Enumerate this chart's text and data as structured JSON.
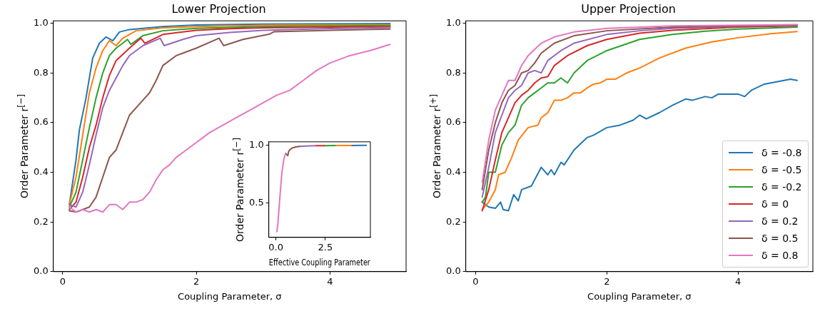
{
  "chart_data": [
    {
      "type": "line",
      "title": "Lower Projection",
      "xlabel": "Coupling Parameter, σ",
      "ylabel": "Order Parameter r$^{[−]}$",
      "xlim": [
        -0.14,
        5.14
      ],
      "ylim": [
        0,
        1.01
      ],
      "xticks": [
        0,
        2,
        4
      ],
      "yticks": [
        {
          "value": 0,
          "label": "0.0"
        },
        {
          "value": 0.2,
          "label": "0.2"
        },
        {
          "value": 0.4,
          "label": "0.4"
        },
        {
          "value": 0.6,
          "label": "0.6"
        },
        {
          "value": 0.8,
          "label": "0.8"
        },
        {
          "value": 1,
          "label": "1.0"
        }
      ],
      "grid": false,
      "legend": false,
      "marker": "none",
      "line_style": "solid",
      "series": [
        {
          "color": "#1f77b4",
          "x": [
            0.1,
            0.2,
            0.25,
            0.35,
            0.45,
            0.55,
            0.65,
            0.75,
            0.85,
            1.0,
            1.5,
            2,
            3,
            4.9
          ],
          "values": [
            0.27,
            0.45,
            0.57,
            0.7,
            0.86,
            0.92,
            0.945,
            0.93,
            0.965,
            0.975,
            0.987,
            0.993,
            0.997,
            0.999
          ]
        },
        {
          "color": "#ff7f0e",
          "x": [
            0.1,
            0.2,
            0.3,
            0.4,
            0.5,
            0.6,
            0.7,
            0.8,
            0.9,
            1.1,
            1.5,
            2,
            3,
            4.9
          ],
          "values": [
            0.27,
            0.38,
            0.55,
            0.72,
            0.82,
            0.89,
            0.93,
            0.91,
            0.94,
            0.97,
            0.982,
            0.987,
            0.992,
            0.995
          ]
        },
        {
          "color": "#2ca02c",
          "x": [
            0.1,
            0.2,
            0.3,
            0.4,
            0.5,
            0.6,
            0.7,
            0.8,
            0.9,
            0.97,
            1.02,
            1.2,
            1.5,
            2,
            3,
            4.9
          ],
          "values": [
            0.26,
            0.32,
            0.45,
            0.58,
            0.7,
            0.8,
            0.87,
            0.9,
            0.92,
            0.935,
            0.915,
            0.95,
            0.97,
            0.98,
            0.987,
            0.991
          ]
        },
        {
          "color": "#d62728",
          "x": [
            0.1,
            0.2,
            0.3,
            0.4,
            0.5,
            0.6,
            0.7,
            0.8,
            1.0,
            1.17,
            1.23,
            1.5,
            2,
            2.5,
            3,
            4,
            4.9
          ],
          "values": [
            0.25,
            0.28,
            0.38,
            0.5,
            0.59,
            0.7,
            0.79,
            0.85,
            0.9,
            0.94,
            0.92,
            0.955,
            0.972,
            0.978,
            0.982,
            0.985,
            0.987
          ]
        },
        {
          "color": "#9467bd",
          "x": [
            0.1,
            0.2,
            0.3,
            0.4,
            0.5,
            0.6,
            0.7,
            0.8,
            0.9,
            1.0,
            1.2,
            1.46,
            1.52,
            1.8,
            2,
            2.5,
            3,
            4,
            4.9
          ],
          "values": [
            0.27,
            0.26,
            0.32,
            0.43,
            0.55,
            0.66,
            0.73,
            0.78,
            0.83,
            0.87,
            0.91,
            0.94,
            0.91,
            0.935,
            0.95,
            0.963,
            0.972,
            0.979,
            0.983
          ]
        },
        {
          "color": "#8c564b",
          "x": [
            0.1,
            0.2,
            0.4,
            0.5,
            0.6,
            0.7,
            0.8,
            0.9,
            1.0,
            1.2,
            1.3,
            1.4,
            1.5,
            1.7,
            2.0,
            2.34,
            2.41,
            2.7,
            3.1,
            3.16,
            3.6,
            4,
            4.9
          ],
          "values": [
            0.245,
            0.24,
            0.26,
            0.3,
            0.38,
            0.46,
            0.49,
            0.56,
            0.63,
            0.69,
            0.72,
            0.77,
            0.83,
            0.87,
            0.9,
            0.94,
            0.91,
            0.935,
            0.957,
            0.966,
            0.969,
            0.972,
            0.977
          ]
        },
        {
          "color": "#e377c2",
          "x": [
            0.1,
            0.2,
            0.3,
            0.4,
            0.5,
            0.6,
            0.7,
            0.8,
            0.9,
            1.0,
            1.1,
            1.2,
            1.3,
            1.4,
            1.5,
            1.6,
            1.7,
            1.8,
            2.0,
            2.2,
            2.4,
            2.6,
            2.8,
            3.0,
            3.2,
            3.4,
            3.6,
            3.8,
            4.0,
            4.3,
            4.6,
            4.9
          ],
          "values": [
            0.26,
            0.24,
            0.25,
            0.24,
            0.25,
            0.24,
            0.27,
            0.27,
            0.25,
            0.28,
            0.28,
            0.29,
            0.32,
            0.37,
            0.41,
            0.43,
            0.46,
            0.48,
            0.52,
            0.56,
            0.59,
            0.62,
            0.65,
            0.68,
            0.71,
            0.73,
            0.77,
            0.81,
            0.84,
            0.87,
            0.89,
            0.915
          ]
        }
      ]
    },
    {
      "type": "line",
      "xlabel": "Effective Coupling Parameter",
      "ylabel": "Order Parameter r$^{[−]}$",
      "xlim": [
        -0.36,
        4.78
      ],
      "ylim": [
        0.2,
        1.03
      ],
      "xticks": [
        {
          "value": 0,
          "label": "0.0"
        },
        2.5
      ],
      "yticks": [
        0.5,
        {
          "value": 1,
          "label": "1.0"
        }
      ],
      "grid": false,
      "legend": false,
      "marker": "none",
      "line_style": "solid",
      "series": [
        {
          "color": "#1f77b4",
          "x": [
            3.8,
            4.57
          ],
          "values": [
            0.998,
            0.999
          ]
        },
        {
          "color": "#ff7f0e",
          "x": [
            3.0,
            3.8
          ],
          "values": [
            0.998,
            0.998
          ]
        },
        {
          "color": "#2ca02c",
          "x": [
            2.45,
            3.0
          ],
          "values": [
            0.997,
            0.998
          ]
        },
        {
          "color": "#d62728",
          "x": [
            2.0,
            2.45
          ],
          "values": [
            0.996,
            0.997
          ]
        },
        {
          "color": "#9467bd",
          "x": [
            1.2,
            1.5,
            2.0
          ],
          "values": [
            0.99,
            0.993,
            0.996
          ]
        },
        {
          "color": "#8c564b",
          "x": [
            0.49,
            0.6,
            0.65,
            0.7,
            0.8,
            1.0,
            1.2
          ],
          "values": [
            0.93,
            0.91,
            0.95,
            0.96,
            0.975,
            0.985,
            0.99
          ]
        },
        {
          "color": "#e377c2",
          "x": [
            0.05,
            0.1,
            0.2,
            0.3,
            0.4,
            0.49
          ],
          "values": [
            0.25,
            0.32,
            0.55,
            0.76,
            0.88,
            0.93
          ]
        }
      ]
    },
    {
      "type": "line",
      "title": "Upper Projection",
      "xlabel": "Coupling Parameter, σ",
      "ylabel": "Order Parameter r$^{[+]}$",
      "xlim": [
        -0.15,
        5.14
      ],
      "ylim": [
        0,
        1.01
      ],
      "xticks": [
        0,
        2,
        4
      ],
      "yticks": [
        {
          "value": 0,
          "label": "0.0"
        },
        {
          "value": 0.2,
          "label": "0.2"
        },
        {
          "value": 0.4,
          "label": "0.4"
        },
        {
          "value": 0.6,
          "label": "0.6"
        },
        {
          "value": 0.8,
          "label": "0.8"
        },
        {
          "value": 1,
          "label": "1.0"
        }
      ],
      "grid": false,
      "legend": "bottom right",
      "marker": "none",
      "line_style": "solid",
      "series": [
        {
          "name": "δ = -0.8",
          "color": "#1f77b4",
          "x": [
            0.1,
            0.2,
            0.3,
            0.38,
            0.42,
            0.5,
            0.58,
            0.65,
            0.7,
            0.85,
            1.0,
            1.1,
            1.15,
            1.2,
            1.3,
            1.35,
            1.5,
            1.7,
            1.8,
            2.0,
            2.2,
            2.4,
            2.5,
            2.6,
            2.8,
            3.0,
            3.2,
            3.3,
            3.5,
            3.6,
            3.7,
            4.0,
            4.1,
            4.2,
            4.4,
            4.6,
            4.7,
            4.8,
            4.9
          ],
          "values": [
            0.28,
            0.26,
            0.255,
            0.28,
            0.25,
            0.245,
            0.31,
            0.285,
            0.33,
            0.345,
            0.42,
            0.39,
            0.41,
            0.39,
            0.44,
            0.43,
            0.49,
            0.54,
            0.55,
            0.58,
            0.59,
            0.61,
            0.63,
            0.615,
            0.64,
            0.67,
            0.695,
            0.69,
            0.705,
            0.7,
            0.715,
            0.715,
            0.705,
            0.73,
            0.755,
            0.765,
            0.77,
            0.775,
            0.77
          ]
        },
        {
          "name": "δ = -0.5",
          "color": "#ff7f0e",
          "x": [
            0.1,
            0.2,
            0.3,
            0.35,
            0.45,
            0.55,
            0.65,
            0.8,
            0.95,
            1.0,
            1.1,
            1.2,
            1.3,
            1.4,
            1.5,
            1.6,
            1.7,
            1.8,
            1.9,
            2.0,
            2.13,
            2.3,
            2.5,
            2.8,
            3.2,
            3.6,
            4.0,
            4.5,
            4.9
          ],
          "values": [
            0.25,
            0.28,
            0.33,
            0.39,
            0.4,
            0.46,
            0.53,
            0.58,
            0.59,
            0.62,
            0.64,
            0.69,
            0.69,
            0.7,
            0.72,
            0.72,
            0.74,
            0.755,
            0.76,
            0.775,
            0.775,
            0.8,
            0.82,
            0.86,
            0.9,
            0.925,
            0.942,
            0.958,
            0.967
          ]
        },
        {
          "name": "δ = -0.2",
          "color": "#2ca02c",
          "x": [
            0.1,
            0.15,
            0.2,
            0.3,
            0.4,
            0.5,
            0.6,
            0.7,
            0.8,
            0.9,
            1.0,
            1.1,
            1.2,
            1.3,
            1.4,
            1.5,
            1.7,
            2.0,
            2.5,
            3.0,
            3.5,
            4.0,
            4.9
          ],
          "values": [
            0.28,
            0.3,
            0.4,
            0.4,
            0.51,
            0.56,
            0.59,
            0.67,
            0.7,
            0.72,
            0.74,
            0.76,
            0.76,
            0.78,
            0.76,
            0.8,
            0.85,
            0.89,
            0.935,
            0.955,
            0.968,
            0.977,
            0.985
          ]
        },
        {
          "name": "δ = 0",
          "color": "#d62728",
          "x": [
            0.1,
            0.2,
            0.3,
            0.4,
            0.5,
            0.6,
            0.7,
            0.8,
            0.9,
            1.0,
            1.1,
            1.2,
            1.4,
            1.7,
            2.0,
            2.5,
            3.0,
            4.0,
            4.9
          ],
          "values": [
            0.245,
            0.33,
            0.45,
            0.56,
            0.62,
            0.68,
            0.71,
            0.73,
            0.76,
            0.78,
            0.785,
            0.83,
            0.87,
            0.91,
            0.935,
            0.96,
            0.972,
            0.985,
            0.99
          ]
        },
        {
          "name": "δ = 0.2",
          "color": "#9467bd",
          "x": [
            0.1,
            0.2,
            0.3,
            0.4,
            0.5,
            0.6,
            0.7,
            0.8,
            0.9,
            1.0,
            1.1,
            1.3,
            1.5,
            2.0,
            2.5,
            3.0,
            4.0,
            4.9
          ],
          "values": [
            0.3,
            0.42,
            0.56,
            0.63,
            0.7,
            0.73,
            0.75,
            0.8,
            0.81,
            0.8,
            0.85,
            0.89,
            0.92,
            0.955,
            0.97,
            0.98,
            0.988,
            0.992
          ]
        },
        {
          "name": "δ = 0.5",
          "color": "#8c564b",
          "x": [
            0.1,
            0.2,
            0.3,
            0.4,
            0.5,
            0.6,
            0.7,
            0.8,
            0.9,
            1.0,
            1.2,
            1.5,
            2.0,
            3.0,
            4.9
          ],
          "values": [
            0.33,
            0.49,
            0.6,
            0.68,
            0.73,
            0.75,
            0.8,
            0.81,
            0.84,
            0.88,
            0.92,
            0.95,
            0.97,
            0.985,
            0.993
          ]
        },
        {
          "name": "δ = 0.8",
          "color": "#e377c2",
          "x": [
            0.1,
            0.2,
            0.3,
            0.4,
            0.5,
            0.6,
            0.7,
            0.8,
            1.0,
            1.2,
            1.5,
            2.0,
            3.0,
            4.9
          ],
          "values": [
            0.36,
            0.53,
            0.65,
            0.71,
            0.77,
            0.77,
            0.83,
            0.87,
            0.92,
            0.945,
            0.965,
            0.98,
            0.99,
            0.995
          ]
        }
      ]
    }
  ]
}
